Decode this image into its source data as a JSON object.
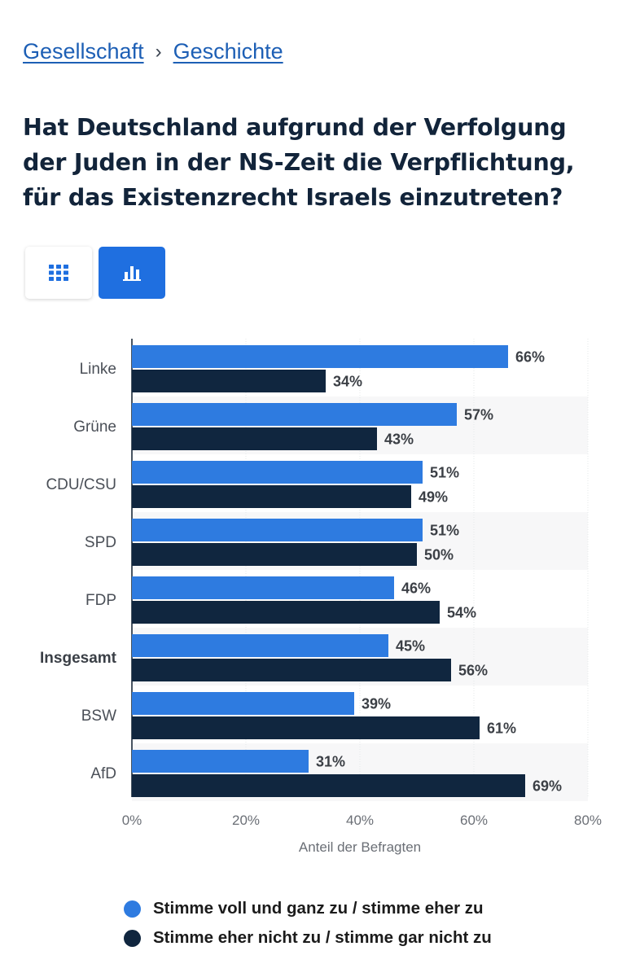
{
  "breadcrumb": {
    "items": [
      "Gesellschaft",
      "Geschichte"
    ],
    "separator": "›"
  },
  "title": "Hat Deutschland aufgrund der Verfolgung der Juden in der NS-Zeit die Verpflichtung, für das Existenzrecht Israels einzutreten?",
  "view_toggle": {
    "icons": [
      "table-grid-icon",
      "bar-chart-icon"
    ],
    "active": "chart"
  },
  "colors": {
    "series_agree": "#2e7be0",
    "series_disagree": "#10263f",
    "active_toggle": "#1f6fe0",
    "link": "#1d5fb5"
  },
  "chart_data": {
    "type": "bar",
    "orientation": "horizontal",
    "categories": [
      "Linke",
      "Grüne",
      "CDU/CSU",
      "SPD",
      "FDP",
      "Insgesamt",
      "BSW",
      "AfD"
    ],
    "bold_category": "Insgesamt",
    "series": [
      {
        "name": "Stimme voll und ganz zu / stimme eher zu",
        "values": [
          66,
          57,
          51,
          51,
          46,
          45,
          39,
          31
        ],
        "color": "#2e7be0"
      },
      {
        "name": "Stimme eher nicht zu / stimme gar nicht zu",
        "values": [
          34,
          43,
          49,
          50,
          54,
          56,
          61,
          69
        ],
        "color": "#10263f"
      }
    ],
    "value_suffix": "%",
    "xlabel": "Anteil der Befragten",
    "ylabel": "",
    "xlim": [
      0,
      80
    ],
    "xticks": [
      "0%",
      "20%",
      "40%",
      "60%",
      "80%"
    ],
    "grid": true,
    "legend_position": "bottom"
  }
}
